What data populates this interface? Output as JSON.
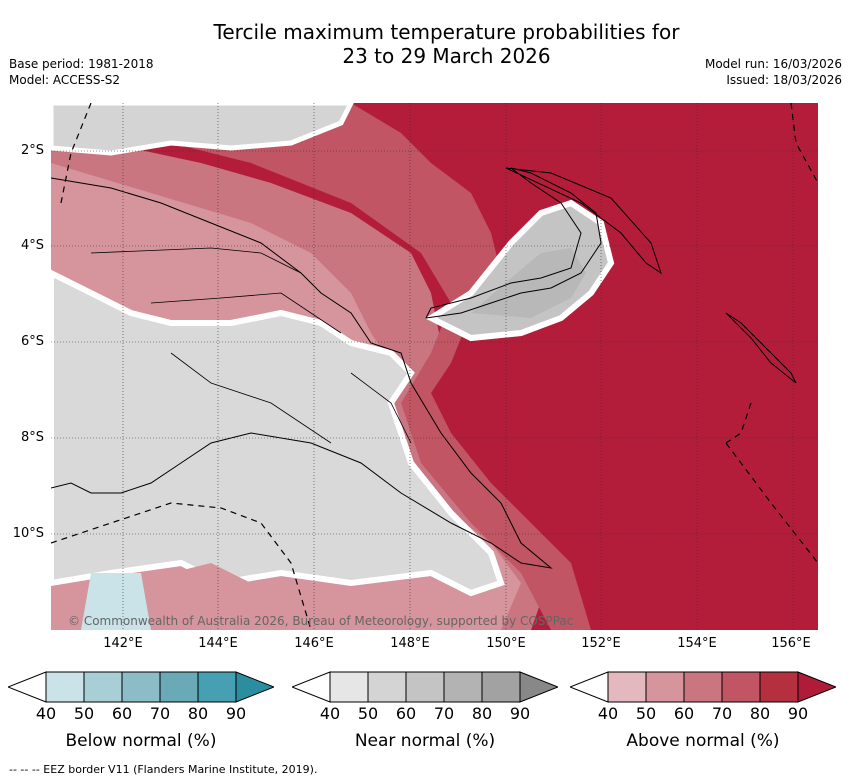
{
  "title_line1": "Tercile maximum temperature probabilities for",
  "title_line2": "23 to 29 March 2026",
  "base_period": "Base period: 1981-2018",
  "model": "Model: ACCESS-S2",
  "model_run": "Model run: 16/03/2026",
  "issued": "Issued: 18/03/2026",
  "lat_labels": [
    "2°S",
    "4°S",
    "6°S",
    "8°S",
    "10°S"
  ],
  "lon_labels": [
    "142°E",
    "144°E",
    "146°E",
    "148°E",
    "150°E",
    "152°E",
    "154°E",
    "156°E"
  ],
  "copyright": "© Commonwealth of Australia 2026, Bureau of Meteorology, supported by COSPPac",
  "colorbars": [
    {
      "label": "Below normal (%)",
      "ticks": [
        "40",
        "50",
        "60",
        "70",
        "80",
        "90"
      ],
      "colors": [
        "#ffffff",
        "#c9e3e8",
        "#a9cfd6",
        "#8cbcc6",
        "#6aa9b6",
        "#46a0b1",
        "#2a8ea0"
      ]
    },
    {
      "label": "Near normal (%)",
      "ticks": [
        "40",
        "50",
        "60",
        "70",
        "80",
        "90"
      ],
      "colors": [
        "#ffffff",
        "#e6e6e6",
        "#d4d4d4",
        "#c4c4c4",
        "#b3b3b3",
        "#a2a2a2",
        "#888888"
      ]
    },
    {
      "label": "Above normal (%)",
      "ticks": [
        "40",
        "50",
        "60",
        "70",
        "80",
        "90"
      ],
      "colors": [
        "#ffffff",
        "#e3b9bf",
        "#d6949c",
        "#c97680",
        "#c15563",
        "#b5303f",
        "#b01c38"
      ]
    }
  ],
  "footer": "--  --  -- EEZ border V11 (Flanders Marine Institute, 2019)."
}
